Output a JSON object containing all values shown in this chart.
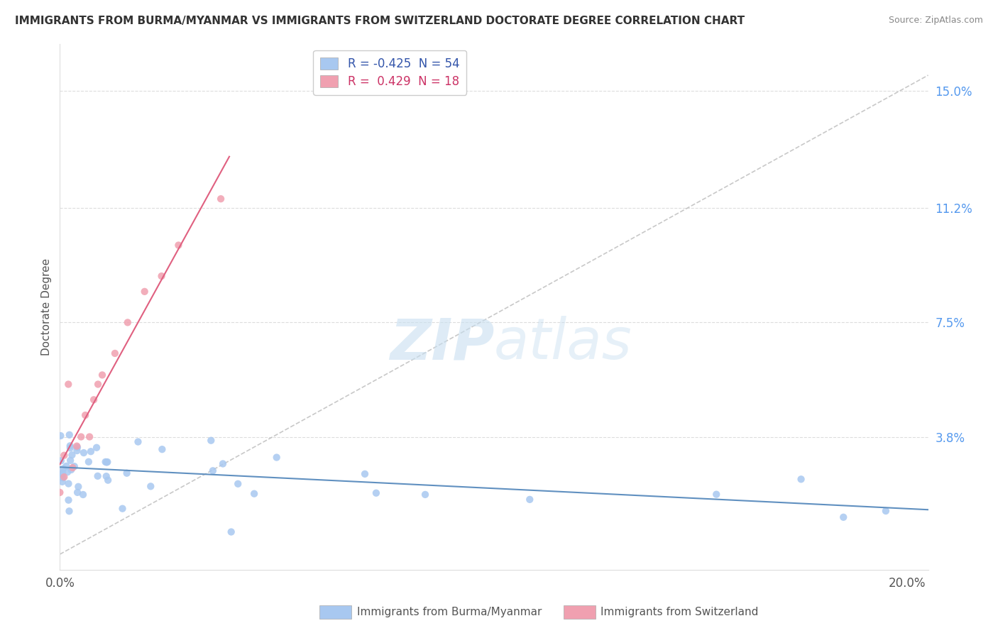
{
  "title": "IMMIGRANTS FROM BURMA/MYANMAR VS IMMIGRANTS FROM SWITZERLAND DOCTORATE DEGREE CORRELATION CHART",
  "source": "Source: ZipAtlas.com",
  "ylabel": "Doctorate Degree",
  "xlim": [
    0.0,
    0.205
  ],
  "ylim": [
    -0.005,
    0.165
  ],
  "legend_blue_label": "Immigrants from Burma/Myanmar",
  "legend_pink_label": "Immigrants from Switzerland",
  "blue_color": "#a8c8f0",
  "pink_color": "#f0a0b0",
  "blue_line_color": "#6090c0",
  "pink_line_color": "#e06080",
  "diagonal_line_color": "#bbbbbb",
  "background_color": "#ffffff",
  "ytick_vals": [
    0.038,
    0.075,
    0.112,
    0.15
  ],
  "ytick_labels": [
    "3.8%",
    "7.5%",
    "11.2%",
    "15.0%"
  ],
  "blue_r": "-0.425",
  "blue_n": "54",
  "pink_r": "0.429",
  "pink_n": "18"
}
